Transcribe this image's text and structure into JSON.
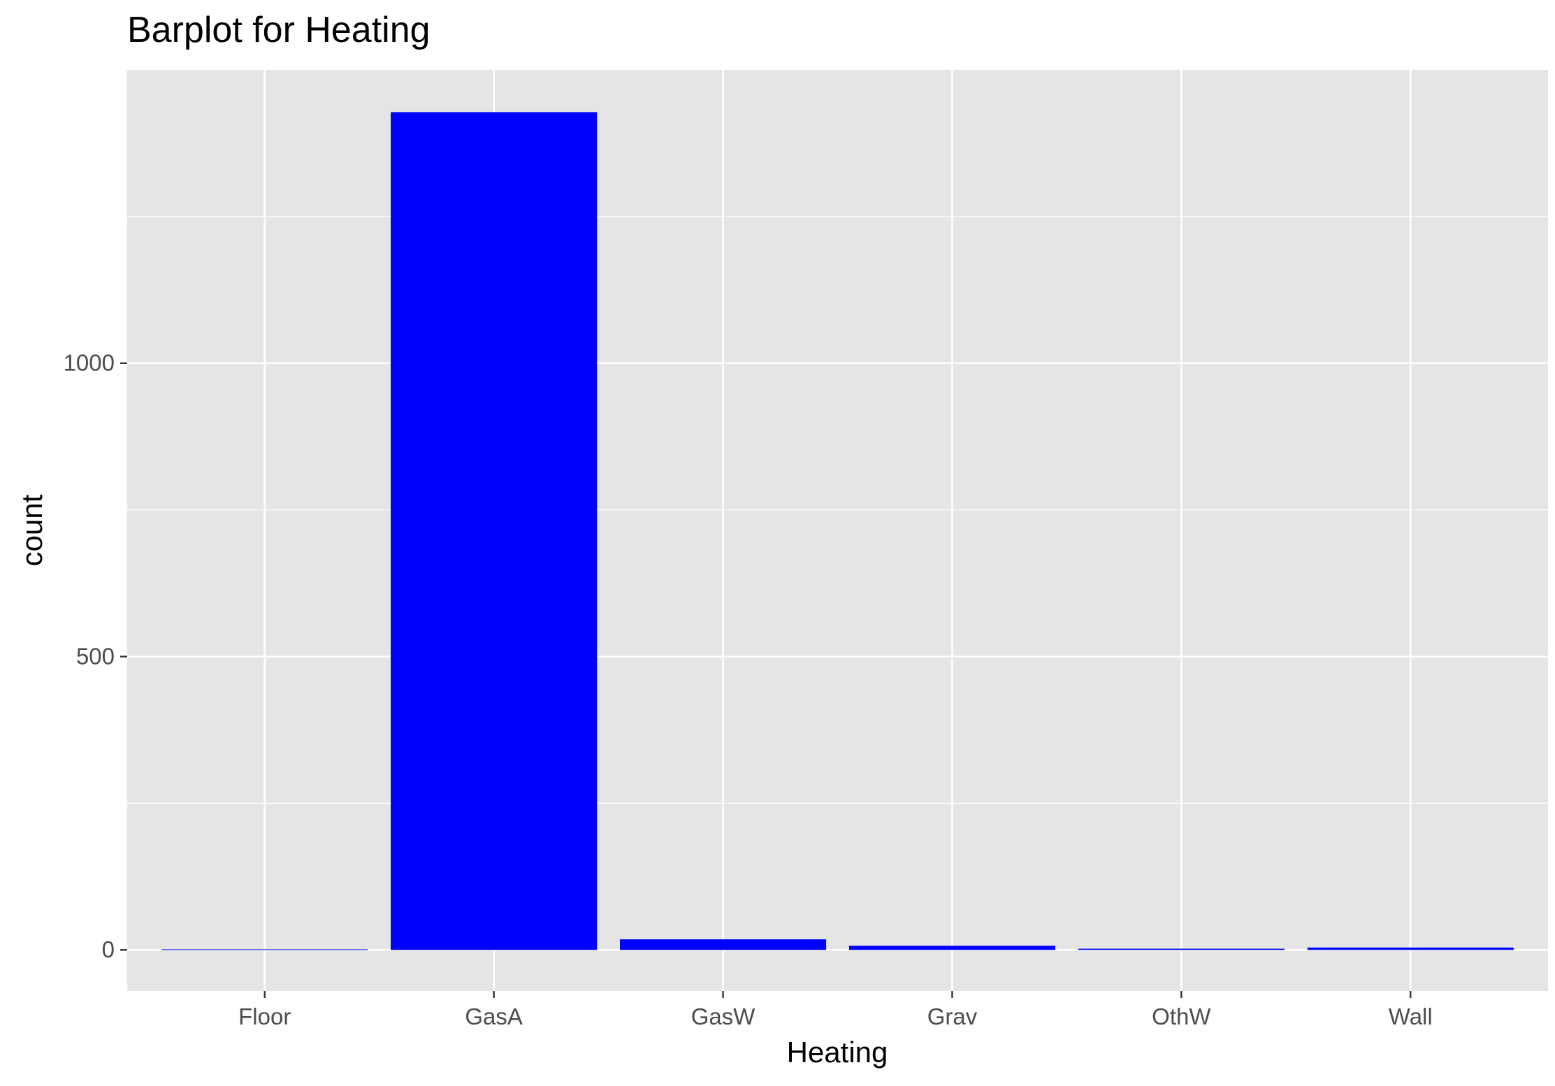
{
  "chart_data": {
    "type": "bar",
    "title": "Barplot for Heating",
    "xlabel": "Heating",
    "ylabel": "count",
    "categories": [
      "Floor",
      "GasA",
      "GasW",
      "Grav",
      "OthW",
      "Wall"
    ],
    "values": [
      1,
      1428,
      18,
      7,
      2,
      4
    ],
    "ylim": [
      -70,
      1500
    ],
    "yticks": [
      0,
      500,
      1000
    ],
    "ytick_labels": [
      "0",
      "500",
      "1000"
    ],
    "grid": true,
    "colors": {
      "bar": "#0000ff",
      "panel_background": "#e5e5e5",
      "grid_line": "#ffffff",
      "tick_text": "#4d4d4d",
      "axis_title": "#000000"
    }
  }
}
